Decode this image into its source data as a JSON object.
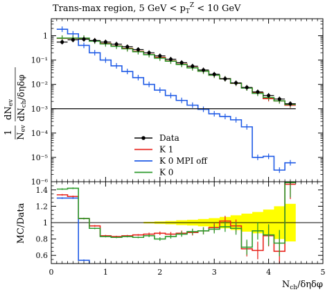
{
  "chart_data": [
    {
      "type": "line",
      "title": "Trans-max region, 5 GeV < p_T^Z < 10 GeV",
      "ylabel": "1/N_ev dN_ev/dN_ch/dηdφ",
      "xlim": [
        0,
        5
      ],
      "ylim": [
        1e-06,
        5
      ],
      "yscale": "log",
      "legend_position": "center",
      "x_edges": [
        0.1,
        0.3,
        0.5,
        0.7,
        0.9,
        1.1,
        1.3,
        1.5,
        1.7,
        1.9,
        2.1,
        2.3,
        2.5,
        2.7,
        2.9,
        3.1,
        3.3,
        3.5,
        3.7,
        3.9,
        4.1,
        4.3,
        4.5
      ],
      "y_tick_labels": [
        "10⁻⁶",
        "10⁻⁵",
        "10⁻⁴",
        "10⁻³",
        "10⁻²",
        "10⁻¹",
        "1"
      ],
      "series": [
        {
          "name": "Data",
          "color": "#000000",
          "style": "points",
          "values": [
            0.55,
            0.68,
            0.72,
            0.64,
            0.55,
            0.45,
            0.35,
            0.27,
            0.2,
            0.148,
            0.108,
            0.078,
            0.056,
            0.039,
            0.026,
            0.017,
            0.0115,
            0.0075,
            0.0049,
            0.0035,
            0.0025,
            0.0016,
            0.001
          ]
        },
        {
          "name": "K 1",
          "color": "#e8221b",
          "style": "step",
          "values": [
            0.78,
            0.78,
            0.78,
            0.62,
            0.48,
            0.38,
            0.3,
            0.23,
            0.17,
            0.128,
            0.093,
            0.068,
            0.049,
            0.035,
            0.024,
            0.017,
            0.011,
            0.0072,
            0.0045,
            0.0026,
            0.0021,
            0.0014,
            0.0015
          ]
        },
        {
          "name": "K 0 MPI off",
          "color": "#1e5ae6",
          "style": "step",
          "values": [
            1.85,
            1.2,
            0.4,
            0.2,
            0.1,
            0.058,
            0.034,
            0.019,
            0.01,
            0.0058,
            0.0035,
            0.0022,
            0.0014,
            0.00095,
            0.00062,
            0.00048,
            0.00035,
            0.00018,
            1e-05,
            1.1e-05,
            3e-06,
            6e-06,
            2.2e-06
          ]
        },
        {
          "name": "K 0",
          "color": "#2c9a2c",
          "style": "step",
          "values": [
            0.8,
            0.8,
            0.8,
            0.6,
            0.46,
            0.37,
            0.29,
            0.22,
            0.167,
            0.12,
            0.09,
            0.066,
            0.048,
            0.035,
            0.024,
            0.017,
            0.0112,
            0.0071,
            0.0043,
            0.0029,
            0.0021,
            0.0015,
            0.0016
          ]
        }
      ]
    },
    {
      "type": "line",
      "xlabel": "N_ch/δηδφ",
      "ylabel": "MC/Data",
      "xlim": [
        0,
        5
      ],
      "ylim": [
        0.5,
        1.5
      ],
      "x_ticks": [
        0,
        1,
        2,
        3,
        4,
        5
      ],
      "y_ticks": [
        0.6,
        0.8,
        1.0,
        1.2,
        1.4
      ],
      "x_tick_labels": [
        "0",
        "1",
        "2",
        "3",
        "4",
        "5"
      ],
      "y_tick_labels": [
        "0.6",
        "0.8",
        "1",
        "1.2",
        "1.4"
      ],
      "x_edges": [
        0.1,
        0.3,
        0.5,
        0.7,
        0.9,
        1.1,
        1.3,
        1.5,
        1.7,
        1.9,
        2.1,
        2.3,
        2.5,
        2.7,
        2.9,
        3.1,
        3.3,
        3.5,
        3.7,
        3.9,
        4.1,
        4.3,
        4.5
      ],
      "data_band_halfwidth": [
        0.0,
        0.0,
        0.0,
        0.0,
        0.0,
        0.0,
        0.0,
        0.0,
        0.01,
        0.015,
        0.02,
        0.03,
        0.035,
        0.045,
        0.055,
        0.07,
        0.09,
        0.11,
        0.13,
        0.16,
        0.2,
        0.23,
        0.26
      ],
      "data_band_color": "#ffff00",
      "series": [
        {
          "name": "K 1",
          "color": "#e8221b",
          "values": [
            1.34,
            1.32,
            1.05,
            0.96,
            0.84,
            0.83,
            0.84,
            0.85,
            0.86,
            0.87,
            0.86,
            0.87,
            0.88,
            0.9,
            0.94,
            1.02,
            0.96,
            0.68,
            0.66,
            0.84,
            0.65,
            1.47,
            null
          ]
        },
        {
          "name": "K 0 MPI off",
          "color": "#1e5ae6",
          "values": [
            1.3,
            1.3,
            0.54,
            null,
            null,
            null,
            null,
            null,
            null,
            null,
            null,
            null,
            null,
            null,
            null,
            null,
            null,
            null,
            null,
            null,
            null,
            null,
            null
          ]
        },
        {
          "name": "K 0",
          "color": "#2c9a2c",
          "values": [
            1.41,
            1.42,
            1.05,
            0.93,
            0.83,
            0.82,
            0.83,
            0.82,
            0.84,
            0.8,
            0.83,
            0.86,
            0.89,
            0.9,
            0.92,
            0.95,
            0.93,
            0.7,
            0.9,
            0.85,
            0.75,
            1.49,
            null
          ]
        }
      ]
    }
  ],
  "legend": [
    {
      "name": "Data",
      "color": "#000000",
      "icon": "marker-dot"
    },
    {
      "name": "K 1",
      "color": "#e8221b",
      "icon": "line"
    },
    {
      "name": "K 0 MPI off",
      "color": "#1e5ae6",
      "icon": "line"
    },
    {
      "name": "K 0",
      "color": "#2c9a2c",
      "icon": "line"
    }
  ],
  "labels": {
    "title": "Trans-max region, 5 GeV < p",
    "title_sub": "T",
    "title_sup": "Z",
    "title_tail": " < 10 GeV",
    "ylabel_top_line1": "1",
    "ylabel_top_frac_num": "dN",
    "ylabel_top_frac_num_sub": "ev",
    "ylabel_top_frac_den": "N",
    "ylabel_top_frac_den_sub": "ev",
    "ylabel_top_frac_den2": "dN",
    "ylabel_top_frac_den2_sub": "ch",
    "ylabel_top_frac_den2_tail": "/δηδφ",
    "ylabel_bottom": "MC/Data",
    "xlabel_main": "N",
    "xlabel_sub": "ch",
    "xlabel_tail": "/δηδφ"
  }
}
